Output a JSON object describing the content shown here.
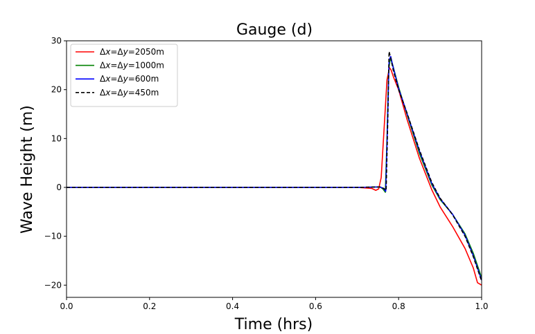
{
  "chart_data": {
    "type": "line",
    "title": "Gauge (d)",
    "xlabel": "Time (hrs)",
    "ylabel": "Wave Height (m)",
    "xlim": [
      0.0,
      1.0
    ],
    "ylim": [
      -22.5,
      30
    ],
    "x_ticks": [
      0.0,
      0.2,
      0.4,
      0.6,
      0.8,
      1.0
    ],
    "x_tick_labels": [
      "0.0",
      "0.2",
      "0.4",
      "0.6",
      "0.8",
      "1.0"
    ],
    "y_ticks": [
      -20,
      -10,
      0,
      10,
      20,
      30
    ],
    "y_tick_labels": [
      "−20",
      "−10",
      "0",
      "10",
      "20",
      "30"
    ],
    "grid": false,
    "legend_position": "top-left",
    "series": [
      {
        "name": "Δx=Δy=2050m",
        "name_parts": [
          "Δ",
          "x",
          "=Δ",
          "y",
          "=2050m"
        ],
        "color": "#ff0000",
        "dash": "solid",
        "x": [
          0.0,
          0.7,
          0.735,
          0.745,
          0.752,
          0.758,
          0.765,
          0.772,
          0.778,
          0.782,
          0.788,
          0.8,
          0.82,
          0.85,
          0.88,
          0.9,
          0.93,
          0.96,
          0.98,
          0.99,
          1.0
        ],
        "y": [
          0.0,
          0.0,
          -0.2,
          -0.6,
          -0.3,
          2.0,
          12.0,
          22.0,
          24.5,
          24.0,
          22.5,
          20.0,
          14.0,
          6.0,
          -0.5,
          -4.0,
          -8.0,
          -12.5,
          -16.5,
          -19.5,
          -20.0
        ]
      },
      {
        "name": "Δx=Δy=1000m",
        "name_parts": [
          "Δ",
          "x",
          "=Δ",
          "y",
          "=1000m"
        ],
        "color": "#008000",
        "dash": "solid",
        "x": [
          0.0,
          0.7,
          0.755,
          0.762,
          0.768,
          0.772,
          0.776,
          0.78,
          0.786,
          0.8,
          0.82,
          0.85,
          0.88,
          0.9,
          0.93,
          0.96,
          0.98,
          1.0
        ],
        "y": [
          0.0,
          0.0,
          0.1,
          -0.3,
          -1.0,
          10.0,
          24.0,
          26.5,
          25.0,
          20.5,
          15.0,
          7.0,
          0.5,
          -2.5,
          -5.5,
          -9.5,
          -13.5,
          -18.5
        ]
      },
      {
        "name": "Δx=Δy=600m",
        "name_parts": [
          "Δ",
          "x",
          "=Δ",
          "y",
          "=600m"
        ],
        "color": "#0000ff",
        "dash": "solid",
        "x": [
          0.0,
          0.7,
          0.755,
          0.763,
          0.769,
          0.773,
          0.777,
          0.781,
          0.787,
          0.8,
          0.82,
          0.85,
          0.88,
          0.9,
          0.93,
          0.96,
          0.98,
          1.0
        ],
        "y": [
          0.0,
          0.0,
          0.1,
          -0.2,
          -0.8,
          12.0,
          26.0,
          26.8,
          24.5,
          20.2,
          15.2,
          7.5,
          0.8,
          -2.3,
          -5.5,
          -9.8,
          -14.0,
          -19.0
        ]
      },
      {
        "name": "Δx=Δy=450m",
        "name_parts": [
          "Δ",
          "x",
          "=Δ",
          "y",
          "=450m"
        ],
        "color": "#000000",
        "dash": "dashed",
        "x": [
          0.0,
          0.7,
          0.755,
          0.764,
          0.77,
          0.774,
          0.777,
          0.781,
          0.787,
          0.8,
          0.82,
          0.85,
          0.88,
          0.9,
          0.93,
          0.96,
          0.98,
          1.0
        ],
        "y": [
          0.0,
          0.0,
          0.1,
          -0.2,
          -0.6,
          14.0,
          27.8,
          26.5,
          24.0,
          20.0,
          15.3,
          7.7,
          1.0,
          -2.2,
          -5.6,
          -10.0,
          -14.2,
          -19.2
        ]
      }
    ]
  }
}
